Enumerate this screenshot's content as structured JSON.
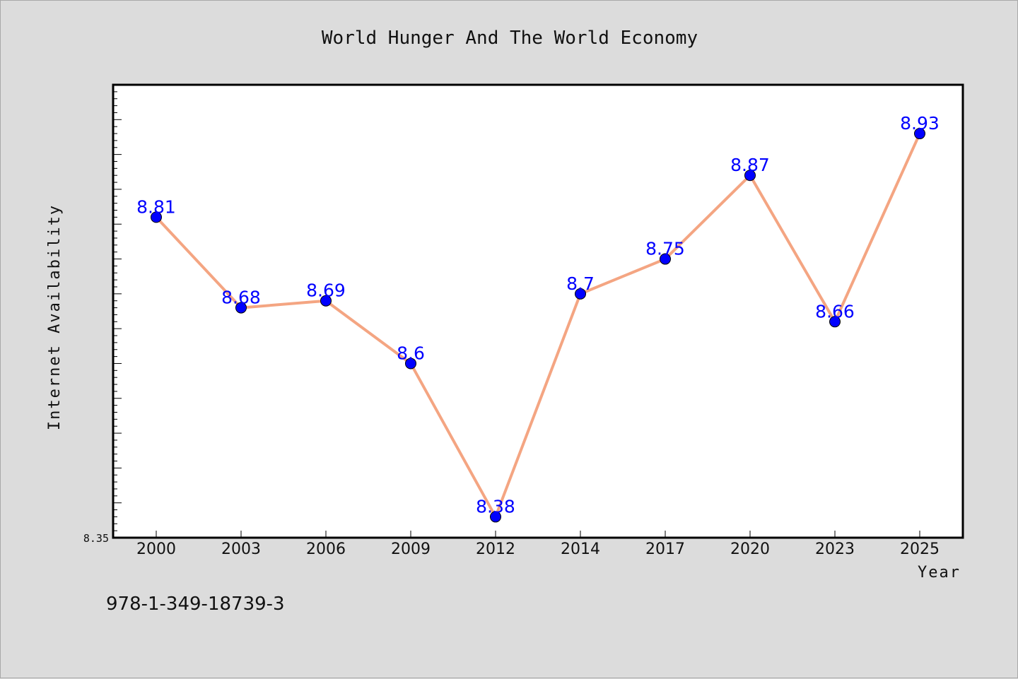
{
  "chart_data": {
    "type": "line",
    "title": "World Hunger And The World Economy",
    "xlabel": "Year",
    "ylabel": "Internet Availability",
    "categories": [
      "2000",
      "2003",
      "2006",
      "2009",
      "2012",
      "2014",
      "2017",
      "2020",
      "2023",
      "2025"
    ],
    "series": [
      {
        "values": [
          8.81,
          8.68,
          8.69,
          8.6,
          8.38,
          8.7,
          8.75,
          8.87,
          8.66,
          8.93
        ],
        "data_labels": [
          "8.81",
          "8.68",
          "8.69",
          "8.6",
          "8.38",
          "8.7",
          "8.75",
          "8.87",
          "8.66",
          "8.93"
        ]
      }
    ],
    "ylim": [
      8.35,
      9.0
    ],
    "y_tick_labels": [
      "8.35"
    ],
    "grid": false,
    "line_color": "#f4a582",
    "marker_color": "#0000ff",
    "label_color": "#0000ff",
    "plot_background": "#ffffff",
    "figure_background": "#dcdcdc"
  },
  "footer_text": "978-1-349-18739-3"
}
